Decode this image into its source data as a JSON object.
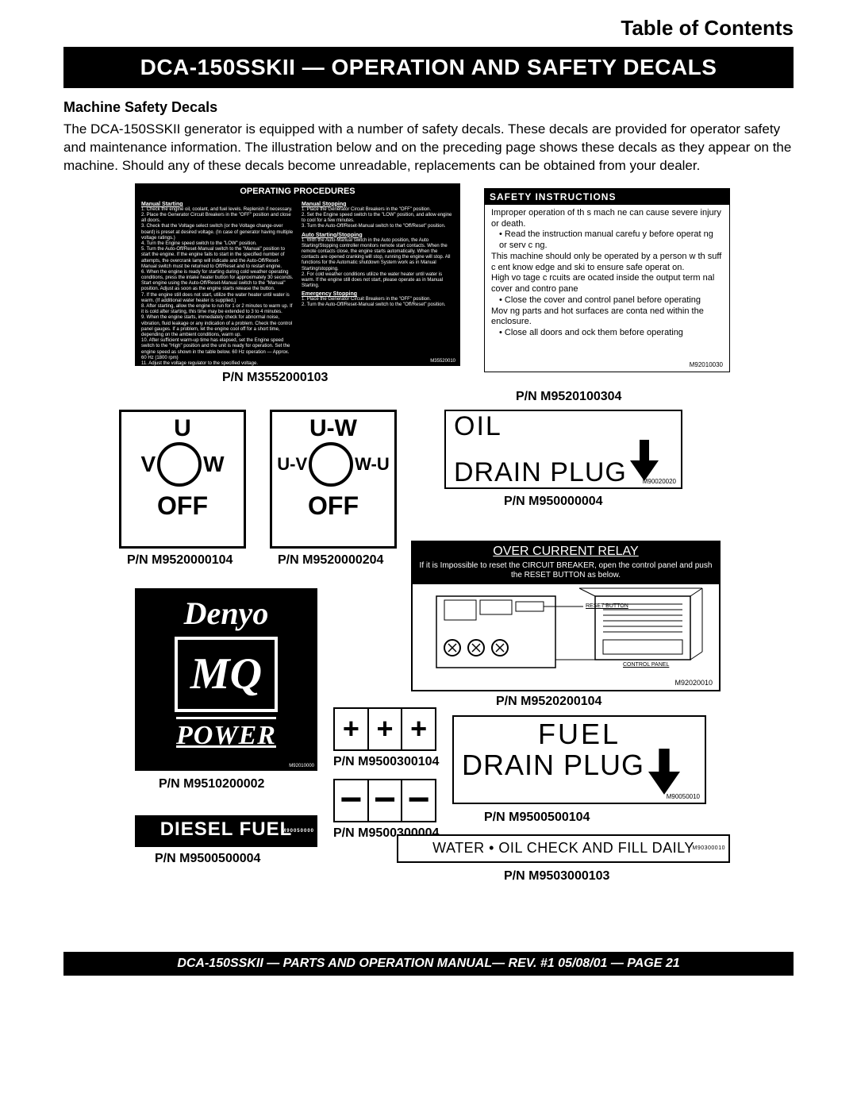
{
  "toc_link": "Table of Contents",
  "title_bar": "DCA-150SSKII  — OPERATION AND SAFETY DECALS",
  "section_heading": "Machine Safety Decals",
  "body_text": "The DCA-150SSKII  generator  is equipped with a number of safety decals. These decals are provided for operator safety and maintenance information. The illustration below and on the preceding page shows these decals as they appear on the machine. Should any of these decals become unreadable, replacements can be obtained from your dealer.",
  "op_proc": {
    "title": "OPERATING PROCEDURES",
    "left_heading": "Manual Starting",
    "left_lines": [
      "1. Check the engine oil, coolant, and fuel levels. Replenish if necessary.",
      "2. Place the Generator Circuit Breakers in the \"OFF\" position and close all doors.",
      "3. Check that the Voltage select switch (or the Voltage change-over board) is preset at desired voltage. (In case of generator having multiple voltage ratings.)",
      "4. Turn the Engine speed switch to the \"LOW\" position.",
      "5. Turn the Auto-Off/Reset-Manual switch to the \"Manual\" position to start the engine. If the engine fails to start in the specified number of attempts, the overcrank lamp will indicate and the Auto-Off/Reset-Manual switch must be returned to Off/Reset and to restart engine.",
      "6. When the engine is ready for starting during cold weather operating conditions, press the intake heater button for approximately 30 seconds. Start engine using the Auto-Off/Reset-Manual switch to the \"Manual\" position. Adjust as soon as the engine starts release the button.",
      "7. If the engine still does not start, utilize the water heater until water is warm. (If additional water heater is supplied.)",
      "8. After starting, allow the engine to run for 1 or 2 minutes to warm up. If it is cold after starting, this time may be extended to 3 to 4 minutes.",
      "9. When the engine starts, immediately check for abnormal noise, vibration, fluid leakage or any indication of a problem. Check the control panel gauges. If a problem, let the engine cool off for a short time, depending on the ambient conditions, warm up.",
      "10. After sufficient warm-up time has elapsed, set the Engine speed switch to the \"High\" position and the unit is ready for operation. Set the engine speed as shown in the table below. 60 Hz operation — Approx. 60 Hz (1800 rpm)",
      "11. Adjust the voltage regulator to the specified voltage."
    ],
    "r1_heading": "Manual Stopping",
    "r1_lines": [
      "1. Place the Generator Circuit Breakers in the \"OFF\" position.",
      "2. Set the Engine speed switch to the \"LOW\" position, and allow engine to cool for a few minutes.",
      "3. Turn the Auto-Off/Reset-Manual switch to the \"Off/Reset\" position."
    ],
    "r2_heading": "Auto Starting/Stopping",
    "r2_lines": [
      "1. With the Auto-Manual switch in the Auto position, the Auto Starting/Stopping controller monitors remote start contacts. When the remote contacts close, the engine starts automatically. When the contacts are opened cranking will stop, running the engine will stop. All functions for the Automatic shutdown System work as in Manual Starting/stopping.",
      "2. For cold weather conditions utilize the water heater until water is warm. If the engine still does not start, please operate as in Manual Starting."
    ],
    "r3_heading": "Emergency Stopping",
    "r3_lines": [
      "1. Place the Generator Circuit Breakers in the \"OFF\" position.",
      "2. Turn the Auto-Off/Reset-Manual switch to the \"Off/Reset\" position."
    ],
    "pn_inner": "M35520010"
  },
  "safety_instr": {
    "hdr": "SAFETY INSTRUCTIONS",
    "lines": [
      "Improper operation of th s mach ne can cause severe injury or death.",
      "• Read the instruction manual carefu y before operat ng or serv c ng.",
      "This machine should only be operated by a person w th suff c ent know edge and ski to ensure safe operat on.",
      "High vo tage c rcuits are  ocated inside the output term nal cover and contro  pane",
      "• Close the cover and control panel before operating",
      "Mov ng parts and hot surfaces are conta ned within the enclosure.",
      "• Close all doors and  ock them before operating"
    ],
    "pn_inner": "M92010030"
  },
  "part_numbers": {
    "op_proc": "P/N M3552000103",
    "safety_instr": "P/N M9520100304",
    "rotary_left": "P/N M9520000104",
    "rotary_right": "P/N M9520000204",
    "oil_drain": "P/N M950000004",
    "ocr": "P/N M9520200104",
    "denyo": "P/N M9510200002",
    "bat_plus": "P/N M9500300104",
    "bat_minus": "P/N M9500300004",
    "fuel_drain": "P/N M9500500104",
    "diesel": "P/N M9500500004",
    "water_oil": "P/N M9503000103"
  },
  "rotary_left": {
    "top": "U",
    "left": "V",
    "right": "W",
    "off": "OFF"
  },
  "rotary_right": {
    "top": "U-W",
    "left": "U-V",
    "right": "W-U",
    "off": "OFF"
  },
  "oil_drain": {
    "line1": "OIL",
    "line2": "DRAIN PLUG",
    "pn_inner": "M90020020"
  },
  "ocr": {
    "hdr": "OVER CURRENT RELAY",
    "sub": "If it is Impossible to reset the CIRCUIT BREAKER, open the control panel and push the RESET BUTTON as below.",
    "label_reset": "RESET BUTTON",
    "label_panel": "CONTROL PANEL",
    "pn_inner": "M92020010"
  },
  "denyo": {
    "brand": "Denyo",
    "mq": "MQ",
    "power": "POWER",
    "pn_inner": "M92010000"
  },
  "bat_plus_sym": "+",
  "bat_minus_sym": "−",
  "fuel_drain": {
    "line1": "FUEL",
    "line2": "DRAIN PLUG",
    "pn_inner": "M90050010"
  },
  "diesel": {
    "text": "DIESEL FUEL",
    "pn_inner": "M90050000"
  },
  "water_oil": {
    "text": "WATER • OIL  CHECK AND FILL DAILY",
    "pn_inner": "M90300010"
  },
  "footer": "DCA-150SSKII — PARTS AND OPERATION  MANUAL— REV. #1  05/08/01 — PAGE 21"
}
